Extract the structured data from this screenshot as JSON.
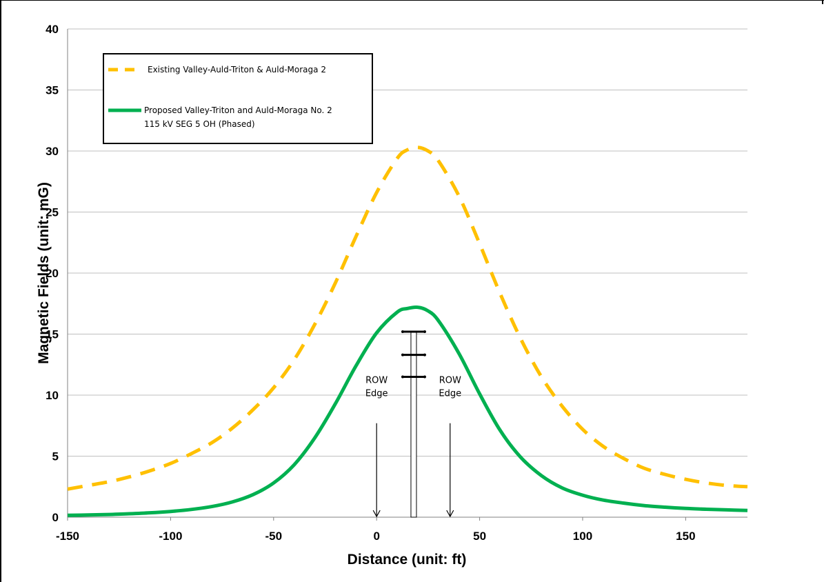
{
  "chart_data": {
    "type": "line",
    "xlabel": "Distance (unit: ft)",
    "ylabel": "Magnetic Fields (unit: mG)",
    "xlim": [
      -150,
      180
    ],
    "ylim": [
      0,
      40
    ],
    "x_ticks": [
      -150,
      -100,
      -50,
      0,
      50,
      100,
      150
    ],
    "y_ticks": [
      0,
      5,
      10,
      15,
      20,
      25,
      30,
      35,
      40
    ],
    "grid": "horizontal",
    "legend_position": "top-left",
    "series": [
      {
        "name": "Existing Valley-Auld-Triton & Auld-Moraga 2",
        "style": "dashed",
        "color": "#FFC000",
        "x": [
          -150,
          -140,
          -130,
          -120,
          -110,
          -100,
          -90,
          -80,
          -70,
          -60,
          -50,
          -40,
          -30,
          -20,
          -10,
          0,
          10,
          15,
          20,
          25,
          30,
          40,
          50,
          60,
          70,
          80,
          90,
          100,
          110,
          120,
          130,
          140,
          150,
          160,
          170,
          180
        ],
        "y": [
          2.3,
          2.6,
          2.9,
          3.3,
          3.8,
          4.4,
          5.2,
          6.1,
          7.3,
          8.8,
          10.6,
          12.9,
          15.8,
          19.2,
          23.0,
          26.6,
          29.4,
          30.1,
          30.3,
          30.0,
          29.2,
          26.3,
          22.4,
          18.3,
          14.6,
          11.5,
          9.1,
          7.2,
          5.8,
          4.8,
          4.0,
          3.5,
          3.1,
          2.8,
          2.6,
          2.5
        ]
      },
      {
        "name": "Proposed Valley-Triton and Auld-Moraga No. 2\n115 kV SEG 5 OH (Phased)",
        "style": "solid",
        "color": "#00B050",
        "x": [
          -150,
          -140,
          -130,
          -120,
          -110,
          -100,
          -90,
          -80,
          -70,
          -60,
          -50,
          -40,
          -30,
          -20,
          -10,
          0,
          10,
          15,
          20,
          25,
          30,
          40,
          50,
          60,
          70,
          80,
          90,
          100,
          110,
          120,
          130,
          140,
          150,
          160,
          170,
          180
        ],
        "y": [
          0.15,
          0.18,
          0.22,
          0.28,
          0.36,
          0.47,
          0.63,
          0.87,
          1.25,
          1.85,
          2.8,
          4.3,
          6.5,
          9.3,
          12.4,
          15.1,
          16.8,
          17.1,
          17.2,
          16.9,
          16.1,
          13.4,
          10.1,
          7.1,
          4.9,
          3.4,
          2.4,
          1.8,
          1.4,
          1.15,
          0.95,
          0.82,
          0.72,
          0.65,
          0.6,
          0.55
        ]
      }
    ],
    "annotations": [
      {
        "label": [
          "ROW",
          "Edge"
        ],
        "x": 0
      },
      {
        "label": [
          "ROW",
          "Edge"
        ],
        "x": 35
      }
    ],
    "tower_x": 18
  },
  "legend": {
    "series1_label": "Existing Valley-Auld-Triton & Auld-Moraga 2",
    "series2_line1": "Proposed Valley-Triton and Auld-Moraga No. 2",
    "series2_line2": "115 kV SEG 5 OH (Phased)"
  },
  "colors": {
    "existing": "#FFC000",
    "proposed": "#00B050",
    "grid": "#BFBFBF"
  }
}
